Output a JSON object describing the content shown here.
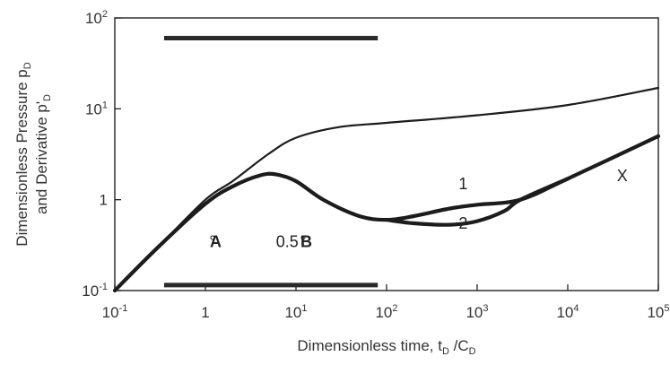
{
  "chart_data": {
    "type": "line",
    "xscale": "log",
    "yscale": "log",
    "xlim": [
      0.1,
      100000
    ],
    "ylim": [
      0.1,
      100
    ],
    "x_ticks": [
      {
        "value": 0.1,
        "base": "10",
        "exp": "-1"
      },
      {
        "value": 1,
        "base": "1",
        "exp": ""
      },
      {
        "value": 10,
        "base": "10",
        "exp": "1"
      },
      {
        "value": 100,
        "base": "10",
        "exp": "2"
      },
      {
        "value": 1000,
        "base": "10",
        "exp": "3"
      },
      {
        "value": 10000,
        "base": "10",
        "exp": "4"
      },
      {
        "value": 100000,
        "base": "10",
        "exp": "5"
      }
    ],
    "y_ticks": [
      {
        "value": 0.1,
        "base": "10",
        "exp": "-1"
      },
      {
        "value": 1,
        "base": "1",
        "exp": ""
      },
      {
        "value": 10,
        "base": "10",
        "exp": "1"
      },
      {
        "value": 100,
        "base": "10",
        "exp": "2"
      }
    ],
    "xlabel": {
      "main": "Dimensionless time, t",
      "sub1": "D",
      "mid": " /C",
      "sub2": "D"
    },
    "ylabel_line1": {
      "main": "Dimensionless Pressure p",
      "sub": "D"
    },
    "ylabel_line2": {
      "main": "and Derivative p'",
      "sub": "D"
    },
    "grid": false,
    "series": [
      {
        "x": [
          0.1,
          0.3,
          1,
          2,
          5,
          10,
          30,
          100,
          1000,
          10000,
          100000
        ],
        "y": [
          0.1,
          0.3,
          1.0,
          1.6,
          3.2,
          4.8,
          6.3,
          7.0,
          8.5,
          11.0,
          17.0
        ]
      },
      {
        "x": [
          0.1,
          0.3,
          1,
          2,
          4,
          6,
          10,
          20,
          50,
          100,
          200,
          500,
          1000,
          3000,
          10000,
          100000
        ],
        "y": [
          0.1,
          0.3,
          0.9,
          1.4,
          1.85,
          1.9,
          1.6,
          1.0,
          0.66,
          0.6,
          0.66,
          0.8,
          0.88,
          1.0,
          1.7,
          5.0
        ]
      },
      {
        "x": [
          100,
          200,
          500,
          1000,
          2000,
          3000,
          10000
        ],
        "y": [
          0.6,
          0.55,
          0.53,
          0.58,
          0.75,
          1.0,
          1.7
        ]
      }
    ],
    "bands": [
      {
        "y": 60,
        "x_from": 0.35,
        "x_to": 80
      },
      {
        "y": 0.115,
        "x_from": 0.35,
        "x_to": 80
      }
    ],
    "annotations": [
      {
        "text": "°",
        "x": 1.2,
        "y": 0.3
      },
      {
        "text": "A",
        "x": 1.3,
        "y": 0.3,
        "bold": true
      },
      {
        "text": "°",
        "x": 12,
        "y": 0.3
      },
      {
        "text": "B",
        "x": 13,
        "y": 0.3,
        "bold": true
      },
      {
        "text": "1",
        "x": 700,
        "y": 1.3
      },
      {
        "text": "2",
        "x": 700,
        "y": 0.48
      },
      {
        "text": "0.5",
        "x": 8,
        "y": 0.3
      },
      {
        "text": "X",
        "x": 40000,
        "y": 1.6
      }
    ]
  }
}
